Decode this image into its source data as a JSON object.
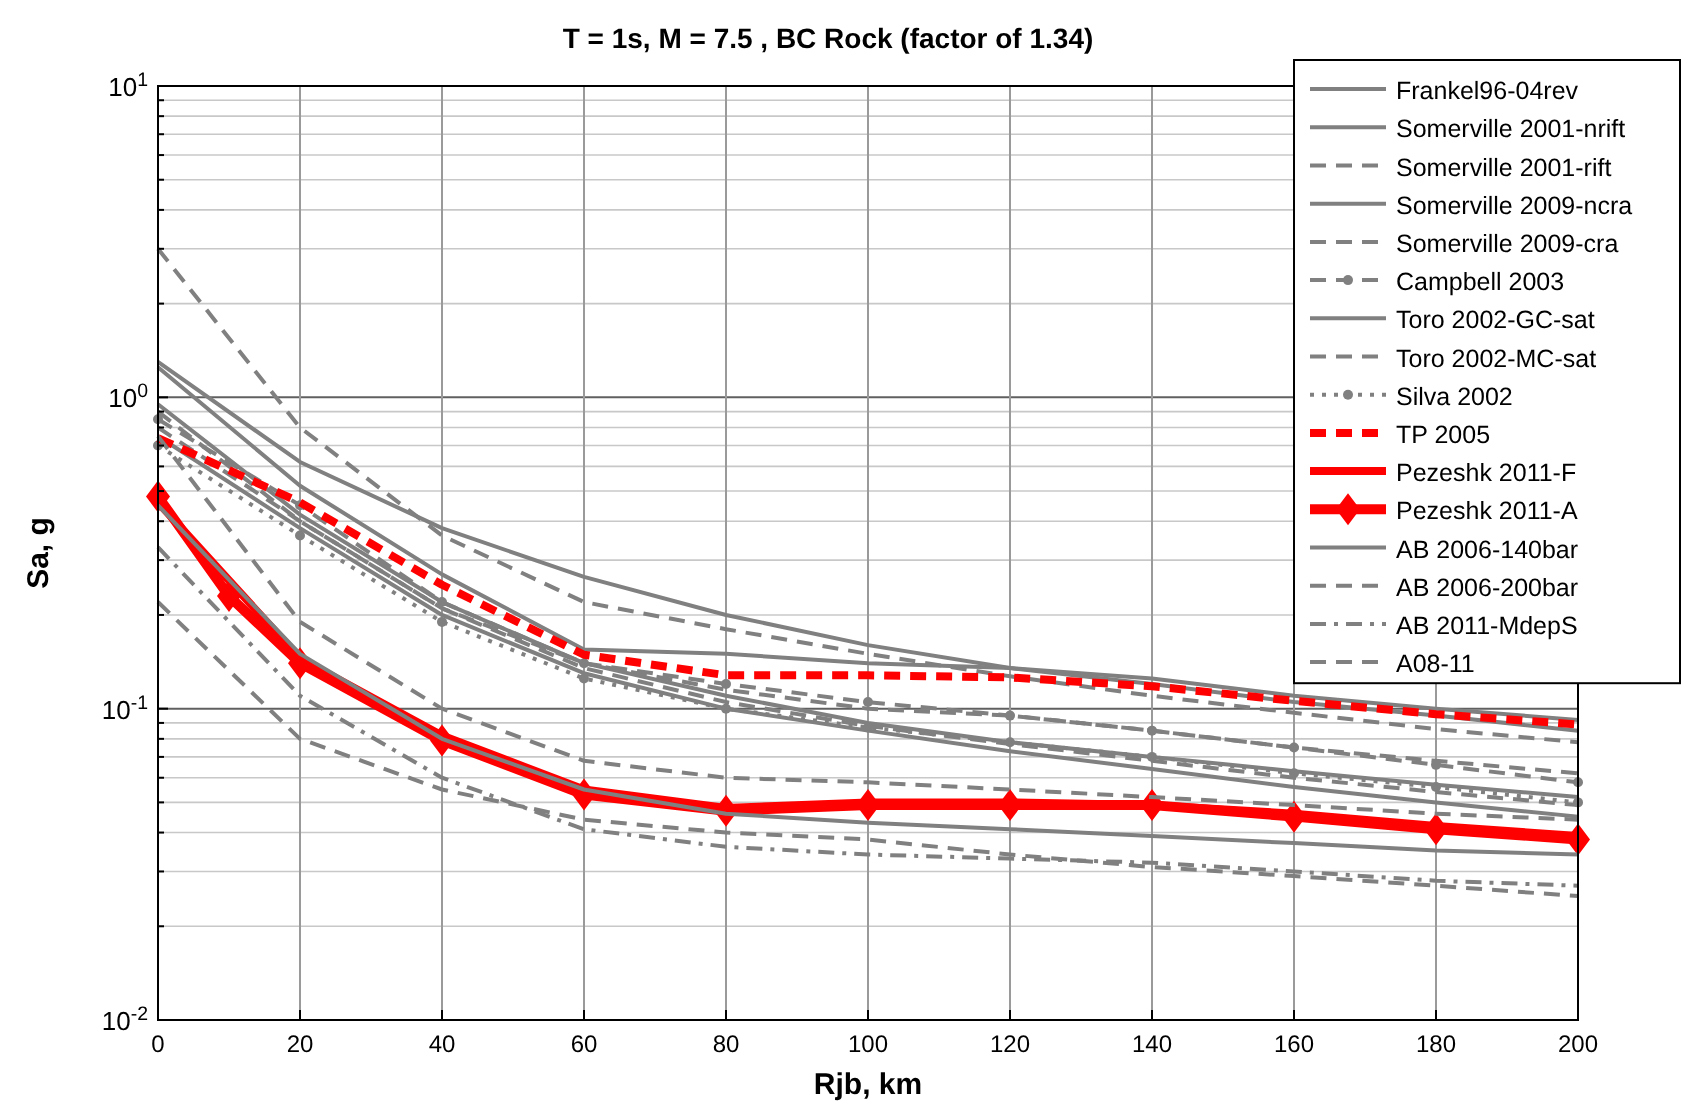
{
  "chart_data": {
    "type": "line",
    "title": "T = 1s, M = 7.5 , BC Rock (factor of  1.34)",
    "xlabel": "Rjb, km",
    "ylabel": "Sa, g",
    "x": [
      0,
      20,
      40,
      60,
      80,
      100,
      120,
      140,
      160,
      180,
      200
    ],
    "xlim": [
      0,
      200
    ],
    "xticks": [
      0,
      20,
      40,
      60,
      80,
      100,
      120,
      140,
      160,
      180,
      200
    ],
    "ylim": [
      0.01,
      10
    ],
    "log": true,
    "grid": true,
    "legend": "top right",
    "yticks": [
      {
        "value": 0.01,
        "label": "10$^{-2}$"
      },
      {
        "value": 0.02,
        "label": null
      },
      {
        "value": 0.03,
        "label": null
      },
      {
        "value": 0.04,
        "label": null
      },
      {
        "value": 0.05,
        "label": null
      },
      {
        "value": 0.06,
        "label": null
      },
      {
        "value": 0.07,
        "label": null
      },
      {
        "value": 0.08,
        "label": null
      },
      {
        "value": 0.09,
        "label": null
      },
      {
        "value": 0.1,
        "label": "10$^{-1}$"
      },
      {
        "value": 0.2,
        "label": null
      },
      {
        "value": 0.3,
        "label": null
      },
      {
        "value": 0.4,
        "label": null
      },
      {
        "value": 0.5,
        "label": null
      },
      {
        "value": 0.6,
        "label": null
      },
      {
        "value": 0.7,
        "label": null
      },
      {
        "value": 0.8,
        "label": null
      },
      {
        "value": 0.9,
        "label": null
      },
      {
        "value": 1,
        "label": "10$^{0}$"
      },
      {
        "value": 2,
        "label": null
      },
      {
        "value": 3,
        "label": null
      },
      {
        "value": 4,
        "label": null
      },
      {
        "value": 5,
        "label": null
      },
      {
        "value": 6,
        "label": null
      },
      {
        "value": 7,
        "label": null
      },
      {
        "value": 8,
        "label": null
      },
      {
        "value": 9,
        "label": null
      },
      {
        "value": 10,
        "label": "10$^{1}$"
      }
    ],
    "series": [
      {
        "name": "Frankel96-04rev",
        "color": "#808080",
        "line_style": "solid",
        "marker": "none",
        "values": [
          1.3,
          0.62,
          0.38,
          0.265,
          0.2,
          0.16,
          0.135,
          0.12,
          0.105,
          0.095,
          0.085
        ]
      },
      {
        "name": "Somerville 2001-nrift",
        "color": "#808080",
        "line_style": "solid",
        "marker": "none",
        "values": [
          1.25,
          0.52,
          0.27,
          0.155,
          0.15,
          0.14,
          0.135,
          0.125,
          0.11,
          0.1,
          0.092
        ]
      },
      {
        "name": "Somerville 2001-rift",
        "color": "#808080",
        "line_style": "dashed",
        "marker": "none",
        "values": [
          3.0,
          0.8,
          0.36,
          0.22,
          0.18,
          0.15,
          0.127,
          0.11,
          0.097,
          0.086,
          0.078
        ]
      },
      {
        "name": "Somerville 2009-ncra",
        "color": "#808080",
        "line_style": "solid",
        "marker": "none",
        "values": [
          0.95,
          0.42,
          0.22,
          0.14,
          0.11,
          0.09,
          0.078,
          0.07,
          0.063,
          0.057,
          0.052
        ]
      },
      {
        "name": "Somerville 2009-cra",
        "color": "#808080",
        "line_style": "dashed",
        "marker": "none",
        "values": [
          0.9,
          0.4,
          0.21,
          0.14,
          0.115,
          0.1,
          0.095,
          0.085,
          0.075,
          0.068,
          0.062
        ]
      },
      {
        "name": "Campbell 2003",
        "color": "#808080",
        "line_style": "dashed",
        "marker": "circle",
        "values": [
          0.85,
          0.45,
          0.22,
          0.14,
          0.12,
          0.105,
          0.095,
          0.085,
          0.075,
          0.066,
          0.058
        ]
      },
      {
        "name": "Toro 2002-GC-sat",
        "color": "#808080",
        "line_style": "solid",
        "marker": "none",
        "values": [
          0.75,
          0.38,
          0.2,
          0.13,
          0.1,
          0.085,
          0.073,
          0.064,
          0.056,
          0.05,
          0.045
        ]
      },
      {
        "name": "Toro 2002-MC-sat",
        "color": "#808080",
        "line_style": "dashed",
        "marker": "none",
        "values": [
          0.8,
          0.4,
          0.21,
          0.135,
          0.105,
          0.088,
          0.077,
          0.068,
          0.06,
          0.054,
          0.049
        ]
      },
      {
        "name": "Silva 2002",
        "color": "#808080",
        "line_style": "dotted",
        "marker": "circle",
        "values": [
          0.7,
          0.36,
          0.19,
          0.125,
          0.1,
          0.087,
          0.078,
          0.07,
          0.062,
          0.056,
          0.05
        ]
      },
      {
        "name": "TP 2005",
        "color": "#ff0000",
        "line_style": "dashed",
        "marker": "none",
        "values": [
          0.74,
          0.46,
          0.25,
          0.149,
          0.128,
          0.128,
          0.126,
          0.118,
          0.106,
          0.096,
          0.089
        ]
      },
      {
        "name": "Pezeshk 2011-F",
        "color": "#ff0000",
        "line_style": "solid",
        "marker": "none",
        "values": [
          0.46,
          0.145,
          0.082,
          0.055,
          0.048,
          0.05,
          0.05,
          0.049,
          0.046,
          0.042,
          0.039
        ]
      },
      {
        "name": "Pezeshk 2011-A",
        "color": "#ff0000",
        "line_style": "solid",
        "marker": "diamond",
        "x": [
          0,
          10,
          20,
          40,
          60,
          80,
          100,
          120,
          140,
          160,
          180,
          200
        ],
        "values": [
          0.48,
          0.23,
          0.14,
          0.079,
          0.053,
          0.047,
          0.049,
          0.049,
          0.049,
          0.045,
          0.041,
          0.038
        ]
      },
      {
        "name": "AB 2006-140bar",
        "color": "#808080",
        "line_style": "solid",
        "marker": "none",
        "values": [
          0.45,
          0.15,
          0.08,
          0.055,
          0.046,
          0.043,
          0.041,
          0.039,
          0.037,
          0.035,
          0.034
        ]
      },
      {
        "name": "AB 2006-200bar",
        "color": "#808080",
        "line_style": "dashed",
        "marker": "none",
        "values": [
          0.75,
          0.19,
          0.1,
          0.068,
          0.06,
          0.058,
          0.055,
          0.052,
          0.049,
          0.046,
          0.044
        ]
      },
      {
        "name": "AB 2011-MdepS",
        "color": "#808080",
        "line_style": "dashdot",
        "marker": "none",
        "values": [
          0.33,
          0.11,
          0.06,
          0.041,
          0.036,
          0.034,
          0.033,
          0.032,
          0.03,
          0.028,
          0.027
        ]
      },
      {
        "name": "A08-11",
        "color": "#808080",
        "line_style": "dashed",
        "marker": "none",
        "values": [
          0.22,
          0.08,
          0.055,
          0.044,
          0.04,
          0.038,
          0.034,
          0.031,
          0.029,
          0.027,
          0.025
        ]
      }
    ]
  }
}
